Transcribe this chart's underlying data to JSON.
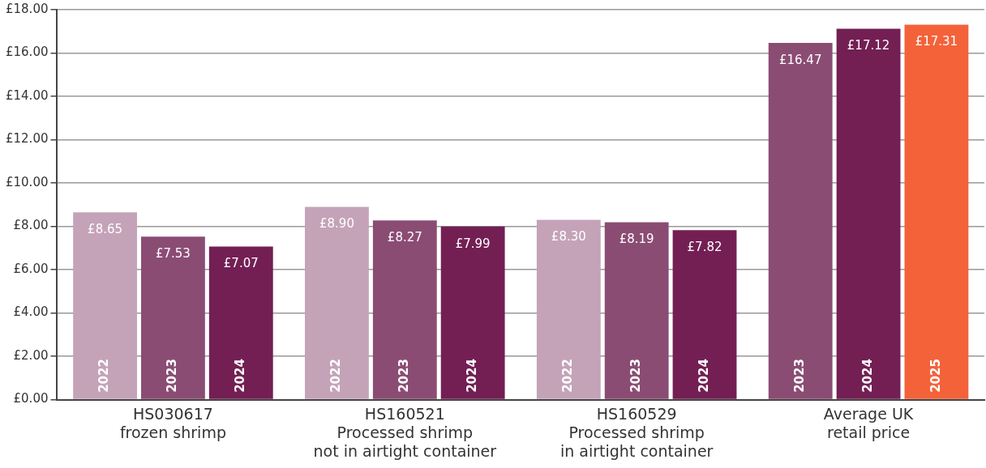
{
  "chart_data": {
    "type": "bar",
    "categories": [
      "HS030617\nfrozen shrimp",
      "HS160521\nProcessed shrimp\nnot in airtight container",
      "HS160529\nProcessed shrimp\nin airtight container",
      "Average UK\nretail price"
    ],
    "series": [
      {
        "name": "2022",
        "color": "#c4a3b9",
        "values": [
          8.65,
          8.9,
          8.3,
          null
        ],
        "value_labels": [
          "£8.65",
          "£8.90",
          "£8.30",
          null
        ]
      },
      {
        "name": "2023",
        "color": "#8b4c74",
        "values": [
          7.53,
          8.27,
          8.19,
          16.47
        ],
        "value_labels": [
          "£7.53",
          "£8.27",
          "£8.19",
          "£16.47"
        ]
      },
      {
        "name": "2024",
        "color": "#731f54",
        "values": [
          7.07,
          7.99,
          7.82,
          17.12
        ],
        "value_labels": [
          "£7.07",
          "£7.99",
          "£7.82",
          "£17.12"
        ]
      },
      {
        "name": "2025",
        "color": "#f4623a",
        "values": [
          null,
          null,
          null,
          17.31
        ],
        "value_labels": [
          null,
          null,
          null,
          "£17.31"
        ]
      }
    ],
    "ylim": [
      0,
      18
    ],
    "yticks": [
      {
        "value": 0,
        "label": "£0.00"
      },
      {
        "value": 2,
        "label": "£2.00"
      },
      {
        "value": 4,
        "label": "£4.00"
      },
      {
        "value": 6,
        "label": "£6.00"
      },
      {
        "value": 8,
        "label": "£8.00"
      },
      {
        "value": 10,
        "label": "£10.00"
      },
      {
        "value": 12,
        "label": "£12.00"
      },
      {
        "value": 14,
        "label": "£14.00"
      },
      {
        "value": 16,
        "label": "£16.00"
      },
      {
        "value": 18,
        "label": "£18.00"
      }
    ],
    "grid": "y",
    "legend": false
  }
}
